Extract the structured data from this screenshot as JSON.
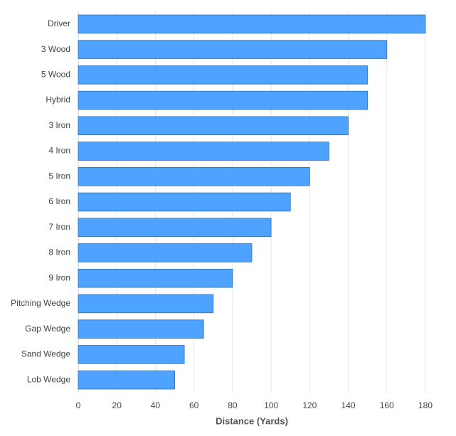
{
  "chart_data": {
    "type": "bar",
    "orientation": "horizontal",
    "x_label": "Distance (Yards)",
    "categories": [
      "Driver",
      "3 Wood",
      "5 Wood",
      "Hybrid",
      "3 Iron",
      "4 Iron",
      "5 Iron",
      "6 Iron",
      "7 Iron",
      "8 Iron",
      "9 Iron",
      "Pitching Wedge",
      "Gap Wedge",
      "Sand Wedge",
      "Lob Wedge"
    ],
    "values": [
      180,
      160,
      150,
      150,
      140,
      130,
      120,
      110,
      100,
      90,
      80,
      70,
      65,
      55,
      50
    ],
    "color": "#4da3ff",
    "xlim": [
      0,
      180
    ],
    "xticks": [
      0,
      20,
      40,
      60,
      80,
      100,
      120,
      140,
      160,
      180
    ],
    "grid": true
  }
}
